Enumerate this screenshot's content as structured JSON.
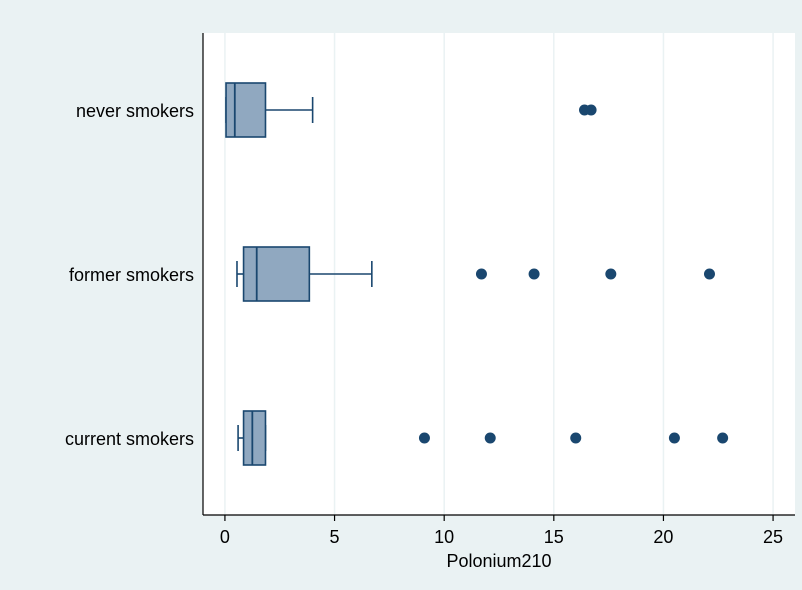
{
  "chart_data": {
    "type": "boxplot",
    "orientation": "horizontal",
    "xlabel": "Polonium210",
    "ylabel": "",
    "xlim": [
      -1,
      26
    ],
    "xticks": [
      0,
      5,
      10,
      15,
      20,
      25
    ],
    "grid": true,
    "colors": {
      "outer_background": "#eaf2f3",
      "plot_background": "#ffffff",
      "box_fill": "#90a8c0",
      "box_stroke": "#1a476f",
      "outlier": "#1a476f",
      "grid": "#eaf2f3"
    },
    "categories": [
      "never smokers",
      "former smokers",
      "current smokers"
    ],
    "boxes": [
      {
        "category": "never smokers",
        "whisker_low": 0.05,
        "q1": 0.05,
        "median": 0.45,
        "q3": 1.85,
        "whisker_high": 4.0,
        "outliers": [
          16.4,
          16.7
        ]
      },
      {
        "category": "former smokers",
        "whisker_low": 0.55,
        "q1": 0.85,
        "median": 1.45,
        "q3": 3.85,
        "whisker_high": 6.7,
        "outliers": [
          11.7,
          14.1,
          17.6,
          22.1
        ]
      },
      {
        "category": "current smokers",
        "whisker_low": 0.6,
        "q1": 0.85,
        "median": 1.25,
        "q3": 1.85,
        "whisker_high": 1.85,
        "outliers": [
          9.1,
          12.1,
          16.0,
          20.5,
          22.7
        ]
      }
    ]
  }
}
